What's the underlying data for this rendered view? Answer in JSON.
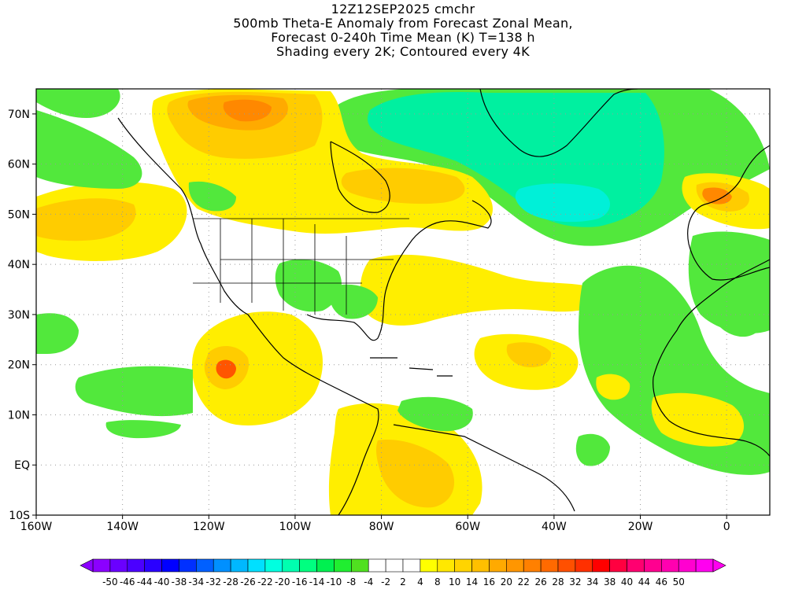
{
  "title": {
    "lines": [
      "12Z12SEP2025 cmchr",
      "500mb Theta-E Anomaly from Forecast Zonal Mean,",
      "Forecast 0-240h Time Mean (K) T=138 h",
      "Shading every 2K; Contoured every 4K"
    ]
  },
  "axes": {
    "x_ticks": [
      {
        "lon": -160,
        "label": "160W"
      },
      {
        "lon": -140,
        "label": "140W"
      },
      {
        "lon": -120,
        "label": "120W"
      },
      {
        "lon": -100,
        "label": "100W"
      },
      {
        "lon": -80,
        "label": "80W"
      },
      {
        "lon": -60,
        "label": "60W"
      },
      {
        "lon": -40,
        "label": "40W"
      },
      {
        "lon": -20,
        "label": "20W"
      },
      {
        "lon": 0,
        "label": "0"
      }
    ],
    "y_ticks": [
      {
        "lat": 70,
        "label": "70N"
      },
      {
        "lat": 60,
        "label": "60N"
      },
      {
        "lat": 50,
        "label": "50N"
      },
      {
        "lat": 40,
        "label": "40N"
      },
      {
        "lat": 30,
        "label": "30N"
      },
      {
        "lat": 20,
        "label": "20N"
      },
      {
        "lat": 10,
        "label": "10N"
      },
      {
        "lat": 0,
        "label": "EQ"
      },
      {
        "lat": -10,
        "label": "10S"
      }
    ],
    "lon_range": [
      -160,
      10
    ],
    "lat_range": [
      -10,
      75
    ]
  },
  "colorbar": {
    "colors": [
      "#8b00ff",
      "#6a00ff",
      "#4b00ff",
      "#2a00ff",
      "#0000ff",
      "#0030ff",
      "#0060ff",
      "#0090ff",
      "#00b8ff",
      "#00e0ff",
      "#00ffe0",
      "#00ffb0",
      "#00ff80",
      "#00f050",
      "#20ee30",
      "#50e020",
      "#ffffff",
      "#ffffff",
      "#ffffff",
      "#ffff00",
      "#ffe800",
      "#ffd400",
      "#ffc000",
      "#ffaa00",
      "#ff9600",
      "#ff8000",
      "#ff6a00",
      "#ff5000",
      "#ff3000",
      "#ff0000",
      "#ff0040",
      "#ff0070",
      "#ff0090",
      "#ff00b0",
      "#ff00d0",
      "#ff00f0"
    ],
    "labels": [
      "-50",
      "-46",
      "-44",
      "-40",
      "-38",
      "-34",
      "-32",
      "-28",
      "-26",
      "-22",
      "-20",
      "-16",
      "-14",
      "-10",
      "-8",
      "-4",
      "-2",
      "2",
      "4",
      "8",
      "10",
      "14",
      "16",
      "20",
      "22",
      "26",
      "28",
      "32",
      "34",
      "38",
      "40",
      "44",
      "46",
      "50"
    ]
  },
  "fields": {
    "colors": {
      "green": "#52e83c",
      "teal": "#00f0a0",
      "cyan": "#00f0d8",
      "yellow": "#ffee00",
      "gold": "#ffcc00",
      "orange": "#ffaa00",
      "deep_orange": "#ff8800",
      "red_orange": "#ff5500"
    }
  }
}
